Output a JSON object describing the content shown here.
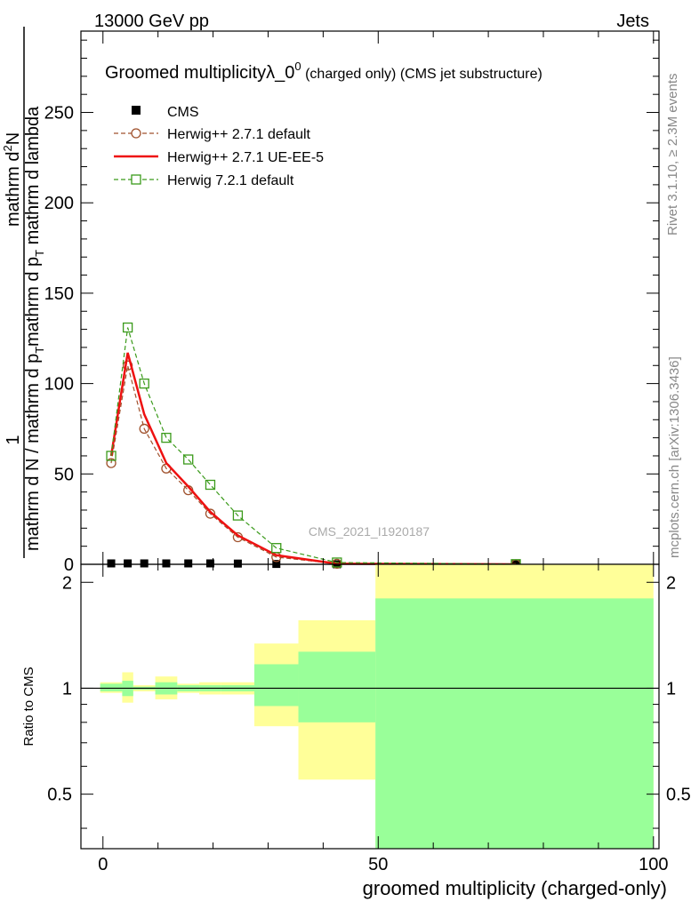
{
  "header": {
    "energy": "13000 GeV pp",
    "process": "Jets"
  },
  "side_labels": {
    "rivet": "Rivet 3.1.10, ≥ 2.3M events",
    "mcplots": "mcplots.cern.ch [arXiv:1306.3436]"
  },
  "watermark": "CMS_2021_I1920187",
  "chart_data": [
    {
      "type": "line",
      "title_main": "Groomed multiplicity",
      "title_lambda": "λ_0",
      "title_sup": "0",
      "title_suffix": " (charged only) (CMS jet substructure)",
      "xlabel": "groomed multiplicity (charged-only)",
      "ylabel_numerator": "1",
      "ylabel_denominator": "mathrm d N / mathrm d p",
      "ylabel_denominator_sub": "T",
      "ylabel_top": "mathrm d",
      "ylabel_top_sup": "2",
      "ylabel_top_rest": "N",
      "ylabel_bottom": "mathrm d p",
      "ylabel_bottom_sub": "T",
      "ylabel_bottom_rest": " mathrm d lambda",
      "xlim": [
        -4,
        101
      ],
      "ylim": [
        0,
        295
      ],
      "yticks": [
        0,
        50,
        100,
        150,
        200,
        250
      ],
      "ytick_labels": [
        "0",
        "50",
        "100",
        "150",
        "200",
        "250"
      ],
      "legend_position": "top-left",
      "series": [
        {
          "name": "CMS",
          "style": "data-squares",
          "color": "#000000",
          "x": [
            1.5,
            4.5,
            7.5,
            11.5,
            15.5,
            19.5,
            24.5,
            31.5,
            42.5,
            75
          ],
          "y": [
            0.5,
            0.5,
            0.5,
            0.5,
            0.5,
            0.5,
            0.4,
            0.2,
            0.0,
            0.0
          ]
        },
        {
          "name": "Herwig++ 2.7.1 default",
          "style": "dashed-circles",
          "color": "#a0522d",
          "x": [
            1.5,
            4.5,
            7.5,
            11.5,
            15.5,
            19.5,
            24.5,
            31.5,
            42.5,
            75
          ],
          "y": [
            56,
            110,
            75,
            53,
            41,
            28,
            15,
            4,
            0.3,
            0.0
          ]
        },
        {
          "name": "Herwig++ 2.7.1 UE-EE-5",
          "style": "solid",
          "color": "#ee1111",
          "x": [
            1.5,
            4.5,
            7.5,
            11.5,
            15.5,
            19.5,
            24.5,
            31.5,
            42.5,
            75
          ],
          "y": [
            60,
            117,
            83,
            56,
            43,
            29,
            16,
            5,
            0.3,
            0.0
          ]
        },
        {
          "name": "Herwig 7.2.1 default",
          "style": "dashed-squares",
          "color": "#3a9a1a",
          "x": [
            1.5,
            4.5,
            7.5,
            11.5,
            15.5,
            19.5,
            24.5,
            31.5,
            42.5,
            75
          ],
          "y": [
            60,
            131,
            100,
            70,
            58,
            44,
            27,
            9,
            1,
            0.1
          ]
        }
      ]
    },
    {
      "type": "area",
      "ylabel": "Ratio to CMS",
      "xlabel": "groomed multiplicity (charged-only)",
      "xlim": [
        -4,
        101
      ],
      "ylim": [
        0.35,
        2.25
      ],
      "yticks": [
        0.5,
        1,
        2
      ],
      "ytick_labels": [
        "0.5",
        "1",
        "2"
      ],
      "xticks": [
        0,
        50,
        100
      ],
      "xtick_labels": [
        "0",
        "50",
        "100"
      ],
      "reference_line": 1,
      "bands": [
        {
          "x0": -0.5,
          "x1": 3.5,
          "yellow": [
            0.97,
            1.04
          ],
          "green": [
            0.98,
            1.03
          ]
        },
        {
          "x0": 3.5,
          "x1": 5.5,
          "yellow": [
            0.91,
            1.11
          ],
          "green": [
            0.95,
            1.05
          ]
        },
        {
          "x0": 5.5,
          "x1": 9.5,
          "yellow": [
            0.98,
            1.02
          ],
          "green": [
            0.99,
            1.01
          ]
        },
        {
          "x0": 9.5,
          "x1": 13.5,
          "yellow": [
            0.93,
            1.08
          ],
          "green": [
            0.96,
            1.04
          ]
        },
        {
          "x0": 13.5,
          "x1": 17.5,
          "yellow": [
            0.97,
            1.03
          ],
          "green": [
            0.98,
            1.02
          ]
        },
        {
          "x0": 17.5,
          "x1": 21.5,
          "yellow": [
            0.96,
            1.04
          ],
          "green": [
            0.98,
            1.02
          ]
        },
        {
          "x0": 21.5,
          "x1": 27.5,
          "yellow": [
            0.96,
            1.04
          ],
          "green": [
            0.98,
            1.02
          ]
        },
        {
          "x0": 27.5,
          "x1": 35.5,
          "yellow": [
            0.78,
            1.34
          ],
          "green": [
            0.89,
            1.17
          ]
        },
        {
          "x0": 35.5,
          "x1": 49.5,
          "yellow": [
            0.55,
            1.56
          ],
          "green": [
            0.8,
            1.27
          ]
        },
        {
          "x0": 49.5,
          "x1": 100,
          "yellow": [
            0.35,
            2.25
          ],
          "green": [
            0.35,
            1.8
          ]
        }
      ]
    }
  ]
}
